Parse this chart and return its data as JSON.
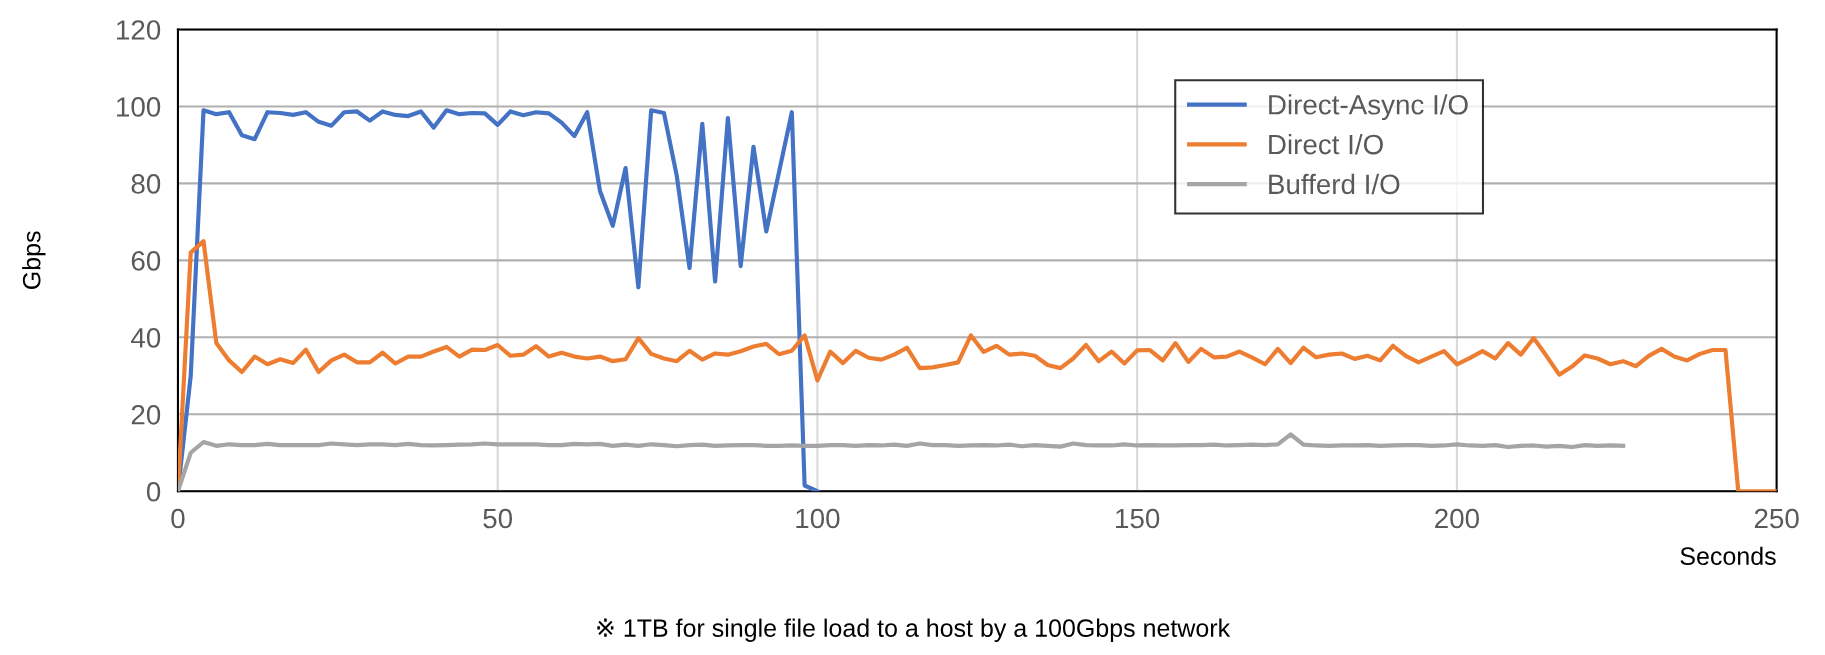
{
  "chart_data": {
    "type": "line",
    "xlabel": "Seconds",
    "ylabel": "Gbps",
    "xlim": [
      0,
      250
    ],
    "xticks": [
      0,
      50,
      100,
      150,
      200,
      250
    ],
    "ylim": [
      0,
      120
    ],
    "yticks": [
      0,
      20,
      40,
      60,
      80,
      100,
      120
    ],
    "grid": true,
    "legend": "top right",
    "marker": "none",
    "line_style": "solid",
    "annotations": [
      "※ 1TB for single file load to a host by a 100Gbps network"
    ],
    "series": [
      {
        "name": "Direct-Async I/O",
        "color": "#4472c4",
        "x": [
          0,
          2,
          4,
          6,
          8,
          10,
          12,
          14,
          16,
          18,
          20,
          22,
          24,
          26,
          28,
          30,
          32,
          34,
          36,
          38,
          40,
          42,
          44,
          46,
          48,
          50,
          52,
          54,
          56,
          58,
          60,
          62,
          64,
          66,
          68,
          70,
          72,
          74,
          76,
          78,
          80,
          82,
          84,
          86,
          88,
          90,
          92,
          94,
          96,
          98,
          100
        ],
        "values": [
          0,
          30,
          99,
          98,
          98.5,
          92.5,
          91.5,
          98.5,
          98.3,
          97.8,
          98.5,
          96,
          95,
          98.5,
          98.7,
          96.3,
          98.7,
          97.8,
          97.5,
          98.7,
          94.5,
          99,
          98,
          98.3,
          98.2,
          95.2,
          98.7,
          97.7,
          98.5,
          98.2,
          95.8,
          92.3,
          98.5,
          78,
          69,
          84,
          53,
          99,
          98.3,
          82,
          58,
          95.5,
          54.5,
          97,
          58.5,
          89.5,
          67.5,
          83,
          98.5,
          1.5,
          0
        ]
      },
      {
        "name": "Direct I/O",
        "color": "#ed7d31",
        "x": [
          0,
          2,
          4,
          6,
          8,
          10,
          12,
          14,
          16,
          18,
          20,
          22,
          24,
          26,
          28,
          30,
          32,
          34,
          36,
          38,
          40,
          42,
          44,
          46,
          48,
          50,
          52,
          54,
          56,
          58,
          60,
          62,
          64,
          66,
          68,
          70,
          72,
          74,
          76,
          78,
          80,
          82,
          84,
          86,
          88,
          90,
          92,
          94,
          96,
          98,
          100,
          102,
          104,
          106,
          108,
          110,
          112,
          114,
          116,
          118,
          120,
          122,
          124,
          126,
          128,
          130,
          132,
          134,
          136,
          138,
          140,
          142,
          144,
          146,
          148,
          150,
          152,
          154,
          156,
          158,
          160,
          162,
          164,
          166,
          168,
          170,
          172,
          174,
          176,
          178,
          180,
          182,
          184,
          186,
          188,
          190,
          192,
          194,
          196,
          198,
          200,
          202,
          204,
          206,
          208,
          210,
          212,
          214,
          216,
          218,
          220,
          222,
          224,
          226,
          228,
          230,
          232,
          234,
          236,
          238,
          240,
          242,
          244,
          246,
          248,
          250
        ],
        "values": [
          0,
          62,
          65,
          38.5,
          34,
          31,
          35,
          33,
          34.3,
          33.3,
          36.8,
          31,
          34,
          35.5,
          33.5,
          33.5,
          36,
          33.2,
          35,
          35,
          36.3,
          37.5,
          35,
          36.8,
          36.7,
          38,
          35.2,
          35.5,
          37.7,
          35,
          36,
          35,
          34.5,
          35,
          33.8,
          34.3,
          39.8,
          35.7,
          34.5,
          33.8,
          36.5,
          34.2,
          35.8,
          35.5,
          36.4,
          37.6,
          38.3,
          35.6,
          36.5,
          40.5,
          28.8,
          36.3,
          33.3,
          36.5,
          34.7,
          34.2,
          35.5,
          37.3,
          32,
          32.2,
          32.8,
          33.5,
          40.5,
          36.2,
          37.8,
          35.5,
          35.8,
          35.2,
          32.8,
          32,
          34.5,
          38,
          33.8,
          36.3,
          33.2,
          36.6,
          36.7,
          34,
          38.5,
          33.6,
          37,
          34.8,
          35,
          36.3,
          34.7,
          33,
          37,
          33.3,
          37.3,
          34.8,
          35.5,
          35.8,
          34.4,
          35.2,
          34,
          37.8,
          35.2,
          33.5,
          35,
          36.4,
          33,
          34.6,
          36.4,
          34.5,
          38.5,
          35.5,
          39.8,
          35.2,
          30.3,
          32.4,
          35.3,
          34.5,
          33,
          33.8,
          32.5,
          35.2,
          37,
          35,
          34,
          35.7,
          36.7,
          36.7,
          0,
          0,
          0,
          0
        ]
      },
      {
        "name": "Bufferd I/O",
        "color": "#a5a5a5",
        "x": [
          0,
          2,
          4,
          6,
          8,
          10,
          12,
          14,
          16,
          18,
          20,
          22,
          24,
          26,
          28,
          30,
          32,
          34,
          36,
          38,
          40,
          42,
          44,
          46,
          48,
          50,
          52,
          54,
          56,
          58,
          60,
          62,
          64,
          66,
          68,
          70,
          72,
          74,
          76,
          78,
          80,
          82,
          84,
          86,
          88,
          90,
          92,
          94,
          96,
          98,
          100,
          102,
          104,
          106,
          108,
          110,
          112,
          114,
          116,
          118,
          120,
          122,
          124,
          126,
          128,
          130,
          132,
          134,
          136,
          138,
          140,
          142,
          144,
          146,
          148,
          150,
          152,
          154,
          156,
          158,
          160,
          162,
          164,
          166,
          168,
          170,
          172,
          174,
          176,
          178,
          180,
          182,
          184,
          186,
          188,
          190,
          192,
          194,
          196,
          198,
          200,
          202,
          204,
          206,
          208,
          210,
          212,
          214,
          216,
          218,
          220,
          222,
          224,
          226
        ],
        "values": [
          0,
          10,
          12.8,
          11.8,
          12.2,
          12,
          12,
          12.3,
          12,
          12,
          12,
          12,
          12.4,
          12.2,
          12,
          12.2,
          12.2,
          12,
          12.3,
          12,
          11.9,
          12,
          12.1,
          12.2,
          12.4,
          12.2,
          12.2,
          12.2,
          12.2,
          12,
          12,
          12.3,
          12.2,
          12.3,
          11.8,
          12.1,
          11.8,
          12.2,
          12,
          11.7,
          12,
          12.1,
          11.8,
          11.9,
          12,
          12,
          11.8,
          11.8,
          11.9,
          11.8,
          11.8,
          12,
          12,
          11.8,
          12,
          11.9,
          12.1,
          11.8,
          12.4,
          12,
          12,
          11.8,
          11.9,
          12,
          11.9,
          12.1,
          11.7,
          12,
          11.8,
          11.6,
          12.4,
          12,
          11.9,
          11.9,
          12.2,
          11.9,
          12,
          11.9,
          11.9,
          12,
          12,
          12.1,
          11.9,
          12,
          12.1,
          12,
          12.2,
          14.8,
          12.1,
          11.9,
          11.8,
          11.9,
          11.9,
          12,
          11.8,
          11.9,
          12,
          12,
          11.8,
          11.9,
          12.2,
          11.9,
          11.8,
          12,
          11.5,
          11.8,
          11.9,
          11.6,
          11.8,
          11.5,
          12,
          11.8,
          11.9,
          11.8
        ]
      }
    ]
  }
}
